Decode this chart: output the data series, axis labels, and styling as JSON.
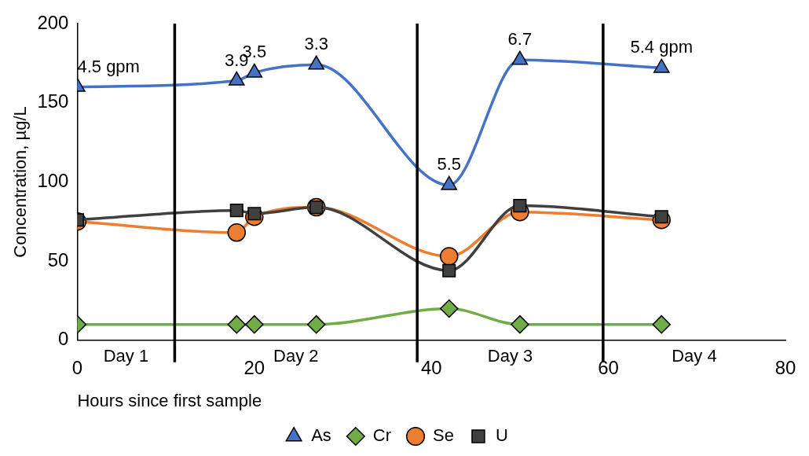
{
  "chart_data": {
    "type": "line",
    "xlabel": "Hours since first sample",
    "ylabel": "Concentration, µg/L",
    "x": [
      0,
      18,
      20,
      27,
      42,
      50,
      66
    ],
    "series": [
      {
        "name": "As",
        "color": "#4472c4",
        "marker": "triangle",
        "values": [
          160,
          164,
          169,
          174,
          98,
          177,
          172
        ]
      },
      {
        "name": "Cr",
        "color": "#70ad47",
        "marker": "diamond",
        "values": [
          10,
          10,
          10,
          10,
          20,
          10,
          10
        ]
      },
      {
        "name": "Se",
        "color": "#ed7d31",
        "marker": "circle",
        "values": [
          75,
          68,
          78,
          84,
          53,
          81,
          76
        ]
      },
      {
        "name": "U",
        "color": "#404040",
        "marker": "square",
        "values": [
          76,
          82,
          80,
          84,
          44,
          85,
          78
        ]
      }
    ],
    "xlim": [
      0,
      80
    ],
    "xticks": [
      0,
      20,
      40,
      60,
      80
    ],
    "ylim": [
      0,
      200
    ],
    "yticks": [
      0,
      50,
      100,
      150,
      200
    ],
    "grid": false,
    "legend": "bottom",
    "ref_lines": [
      {
        "axis": "x",
        "value": 11,
        "label": null,
        "color": "#000000"
      },
      {
        "axis": "x",
        "value": 38.4,
        "label": null,
        "color": "#000000"
      },
      {
        "axis": "x",
        "value": 59.4,
        "label": null,
        "color": "#000000"
      }
    ],
    "annotations": [
      "Day 1",
      "Day 2",
      "Day 3",
      "Day 4",
      {
        "text": "4.5 gpm",
        "x": 0,
        "y": 160
      },
      {
        "text": "3.9",
        "x": 18,
        "y": 164
      },
      {
        "text": "3.5",
        "x": 20,
        "y": 169
      },
      {
        "text": "3.3",
        "x": 27,
        "y": 174
      },
      {
        "text": "5.5",
        "x": 42,
        "y": 98
      },
      {
        "text": "6.7",
        "x": 50,
        "y": 177
      },
      {
        "text": "5.4 gpm",
        "x": 66,
        "y": 172
      }
    ]
  }
}
